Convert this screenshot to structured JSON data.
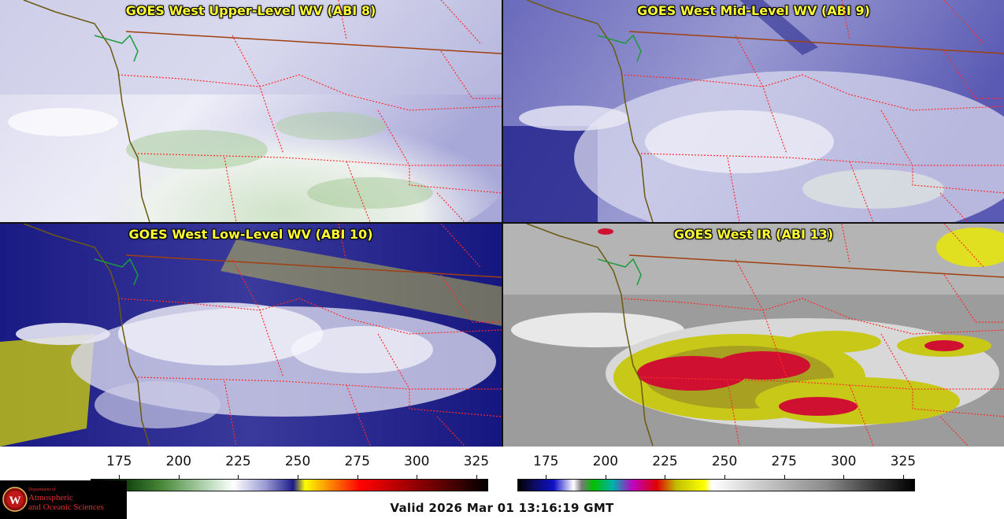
{
  "panels": [
    {
      "title": "GOES West Upper-Level WV (ABI 8)"
    },
    {
      "title": "GOES West Mid-Level WV (ABI 9)"
    },
    {
      "title": "GOES West Low-Level WV (ABI 10)"
    },
    {
      "title": "GOES West IR (ABI 13)"
    }
  ],
  "colorbars": [
    {
      "name": "wv-colorbar",
      "ticks": [
        "175",
        "200",
        "225",
        "250",
        "275",
        "300",
        "325"
      ]
    },
    {
      "name": "ir-colorbar",
      "ticks": [
        "175",
        "200",
        "225",
        "250",
        "275",
        "300",
        "325"
      ]
    }
  ],
  "valid_time": "Valid 2026 Mar 01 13:16:19 GMT",
  "logo": {
    "line1": "Department of",
    "line2": "Atmospheric",
    "line3": "and Oceanic Sciences",
    "letter": "W"
  },
  "colors": {
    "title_text": "#ffff33",
    "state_border": "#ff2a2a",
    "coast": "#6b5a12",
    "wv_ramp": [
      "#0c3d0c",
      "#4a8a3a",
      "#bfdcbf",
      "#ffffff",
      "#9a9ad4",
      "#1c1c8a",
      "#ffff00",
      "#ff8c00",
      "#ff0000",
      "#7a0000",
      "#000000"
    ],
    "ir_ramp": [
      "#000000",
      "#1010c8",
      "#ffffff",
      "#00c000",
      "#00b0b0",
      "#c000c0",
      "#e00000",
      "#ffff00",
      "#ffffff",
      "#808080",
      "#000000"
    ]
  }
}
